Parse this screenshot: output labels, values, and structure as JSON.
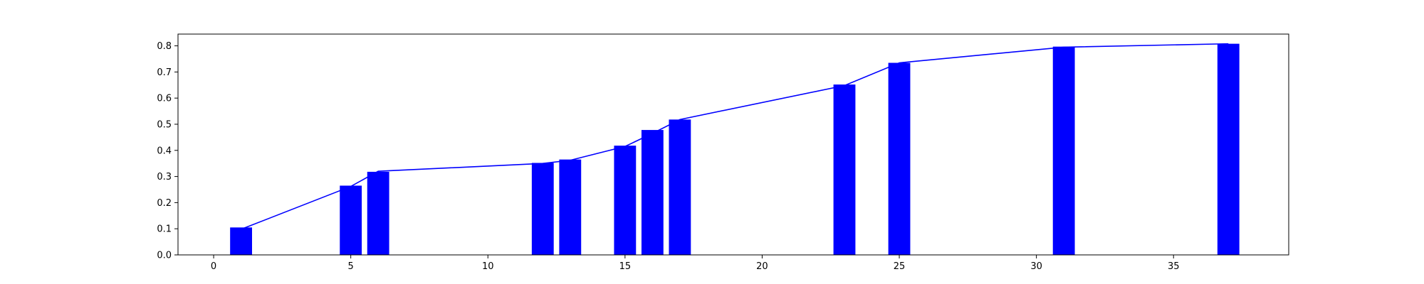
{
  "chart_data": {
    "type": "bar",
    "title": "",
    "xlabel": "",
    "ylabel": "",
    "xlim": [
      -1.3,
      39.2
    ],
    "ylim": [
      0,
      0.845
    ],
    "grid": false,
    "legend": "none",
    "x_ticks": [
      0,
      5,
      10,
      15,
      20,
      25,
      30,
      35
    ],
    "y_ticks": [
      0.0,
      0.1,
      0.2,
      0.3,
      0.4,
      0.5,
      0.6,
      0.7,
      0.8
    ],
    "bar_width": 0.8,
    "series": [
      {
        "type": "bar",
        "color": "#0000ff",
        "x": [
          1,
          5,
          6,
          12,
          13,
          15,
          16,
          17,
          23,
          25,
          31,
          37
        ],
        "values": [
          0.105,
          0.265,
          0.318,
          0.352,
          0.365,
          0.418,
          0.478,
          0.518,
          0.652,
          0.735,
          0.797,
          0.808
        ]
      },
      {
        "type": "line",
        "color": "#0000ff",
        "x": [
          1,
          5,
          6,
          12,
          13,
          15,
          16,
          17,
          23,
          25,
          31,
          37
        ],
        "values": [
          0.098,
          0.262,
          0.32,
          0.35,
          0.362,
          0.415,
          0.465,
          0.518,
          0.648,
          0.735,
          0.795,
          0.808
        ]
      }
    ]
  }
}
